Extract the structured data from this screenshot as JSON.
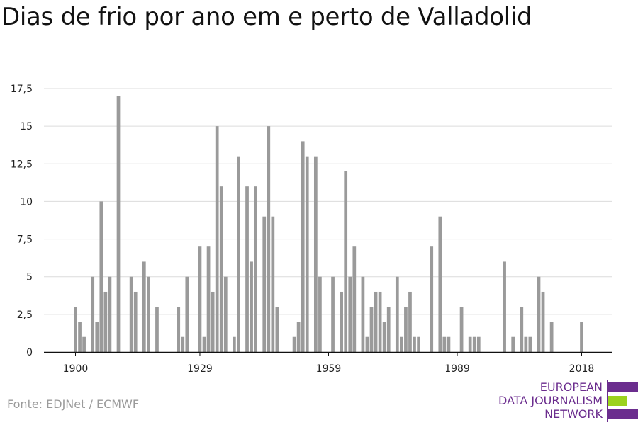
{
  "title": "Dias de frio por ano em e perto de Valladolid",
  "source": "Fonte: EDJNet / ECMWF",
  "logo": {
    "lines": [
      "EUROPEAN",
      "DATA JOURNALISM",
      "NETWORK"
    ],
    "colors": {
      "purple": "#6b2d8e",
      "green": "#9bd21e"
    }
  },
  "chart_data": {
    "type": "bar",
    "title": "Dias de frio por ano em e perto de Valladolid",
    "xlabel": "",
    "ylabel": "",
    "x_ticks": [
      1900,
      1929,
      1959,
      1989,
      2018
    ],
    "y_ticks": [
      "0",
      "2,5",
      "5",
      "7,5",
      "10",
      "12,5",
      "15",
      "17,5"
    ],
    "ylim": [
      0,
      17.5
    ],
    "xlim": [
      1894,
      2024
    ],
    "grid": true,
    "bar_color": "#9a9a9a",
    "series": [
      {
        "x": [
          1900,
          1901,
          1902,
          1903,
          1904,
          1905,
          1906,
          1907,
          1908,
          1909,
          1910,
          1911,
          1912,
          1913,
          1914,
          1915,
          1916,
          1917,
          1918,
          1919,
          1920,
          1921,
          1922,
          1923,
          1924,
          1925,
          1926,
          1927,
          1928,
          1929,
          1930,
          1931,
          1932,
          1933,
          1934,
          1935,
          1936,
          1937,
          1938,
          1939,
          1940,
          1941,
          1942,
          1943,
          1944,
          1945,
          1946,
          1947,
          1948,
          1949,
          1950,
          1951,
          1952,
          1953,
          1954,
          1955,
          1956,
          1957,
          1958,
          1959,
          1960,
          1961,
          1962,
          1963,
          1964,
          1965,
          1966,
          1967,
          1968,
          1969,
          1970,
          1971,
          1972,
          1973,
          1974,
          1975,
          1976,
          1977,
          1978,
          1979,
          1980,
          1981,
          1982,
          1983,
          1984,
          1985,
          1986,
          1987,
          1988,
          1989,
          1990,
          1991,
          1992,
          1993,
          1994,
          1995,
          1996,
          1997,
          1998,
          1999,
          2000,
          2001,
          2002,
          2003,
          2004,
          2005,
          2006,
          2007,
          2008,
          2009,
          2010,
          2011,
          2012,
          2013,
          2014,
          2015,
          2016,
          2017,
          2018
        ],
        "values": [
          3,
          2,
          1,
          0,
          5,
          2,
          10,
          4,
          5,
          0,
          17,
          0,
          0,
          5,
          4,
          0,
          6,
          5,
          0,
          3,
          0,
          0,
          0,
          0,
          3,
          1,
          5,
          0,
          0,
          7,
          1,
          7,
          4,
          15,
          11,
          5,
          0,
          1,
          13,
          0,
          11,
          6,
          11,
          0,
          9,
          15,
          9,
          3,
          0,
          0,
          0,
          1,
          2,
          14,
          13,
          0,
          13,
          5,
          0,
          0,
          5,
          0,
          4,
          12,
          5,
          7,
          0,
          5,
          1,
          3,
          4,
          4,
          2,
          3,
          0,
          5,
          1,
          3,
          4,
          1,
          1,
          0,
          0,
          7,
          0,
          9,
          1,
          1,
          0,
          0,
          3,
          0,
          1,
          1,
          1,
          0,
          0,
          0,
          0,
          0,
          6,
          0,
          1,
          0,
          3,
          1,
          1,
          0,
          5,
          4,
          0,
          2,
          0,
          0,
          0,
          0,
          0,
          0,
          2
        ]
      }
    ]
  }
}
